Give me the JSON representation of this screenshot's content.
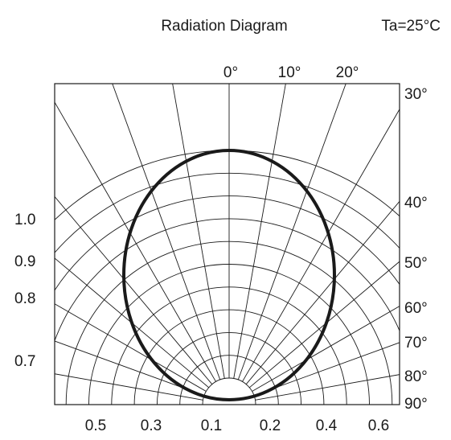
{
  "chart_data": {
    "type": "polar",
    "title": "Radiation Diagram",
    "condition": "Ta=25°C",
    "top_angle_labels": [
      "0°",
      "10°",
      "20°"
    ],
    "right_angle_labels": [
      "30°",
      "40°",
      "50°",
      "60°",
      "70°",
      "80°",
      "90°"
    ],
    "left_radius_labels": [
      "1.0",
      "0.9",
      "0.8",
      "0.7"
    ],
    "bottom_labels": [
      "0.5",
      "0.3",
      "0.1",
      "0.2",
      "0.4",
      "0.6"
    ],
    "spoke_step_deg": 10,
    "pattern_type": "circle-through-origin",
    "pattern_relative_intensity": [
      {
        "angle": 0,
        "value": 1.0
      },
      {
        "angle": 30,
        "value": 0.87
      },
      {
        "angle": 60,
        "value": 0.5
      },
      {
        "angle": 90,
        "value": 0.0
      }
    ]
  }
}
